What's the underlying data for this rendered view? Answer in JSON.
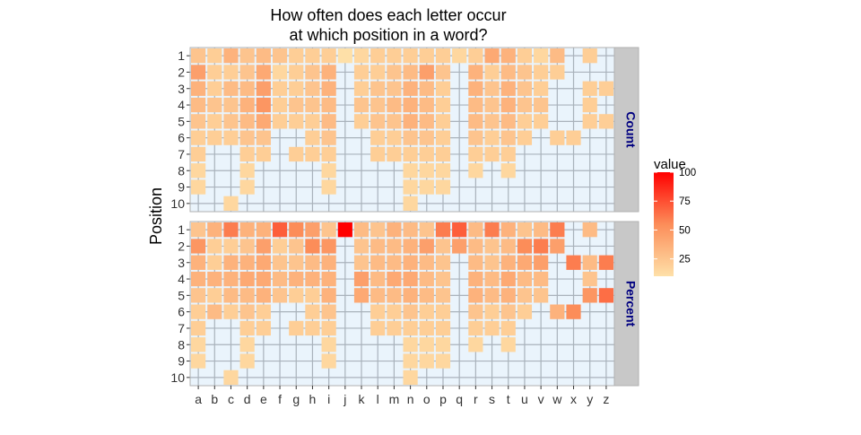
{
  "chart_data": {
    "type": "heatmap",
    "title_line1": "How often does each letter occur",
    "title_line2": "at which position in a word?",
    "ylabel": "Position",
    "xlabel": "",
    "x_categories": [
      "a",
      "b",
      "c",
      "d",
      "e",
      "f",
      "g",
      "h",
      "i",
      "j",
      "k",
      "l",
      "m",
      "n",
      "o",
      "p",
      "q",
      "r",
      "s",
      "t",
      "u",
      "v",
      "w",
      "x",
      "y",
      "z"
    ],
    "y_categories": [
      "1",
      "2",
      "3",
      "4",
      "5",
      "6",
      "7",
      "8",
      "9",
      "10"
    ],
    "panels": [
      {
        "name": "Count",
        "values": [
          [
            25,
            20,
            35,
            25,
            30,
            25,
            20,
            20,
            20,
            10,
            15,
            20,
            20,
            20,
            20,
            20,
            15,
            20,
            40,
            35,
            20,
            15,
            30,
            null,
            20,
            null
          ],
          [
            45,
            20,
            20,
            25,
            40,
            15,
            20,
            25,
            35,
            null,
            20,
            20,
            25,
            30,
            45,
            25,
            null,
            35,
            20,
            30,
            25,
            20,
            20,
            null,
            null,
            null
          ],
          [
            35,
            20,
            30,
            30,
            45,
            20,
            20,
            25,
            35,
            null,
            20,
            25,
            25,
            35,
            30,
            20,
            null,
            35,
            25,
            35,
            25,
            20,
            null,
            null,
            20,
            20
          ],
          [
            30,
            25,
            25,
            35,
            50,
            20,
            25,
            25,
            30,
            null,
            25,
            25,
            30,
            35,
            30,
            20,
            null,
            30,
            25,
            35,
            25,
            25,
            null,
            null,
            20,
            null
          ],
          [
            25,
            20,
            25,
            30,
            40,
            20,
            20,
            20,
            30,
            null,
            20,
            25,
            25,
            35,
            30,
            20,
            null,
            30,
            25,
            30,
            20,
            20,
            null,
            null,
            20,
            20
          ],
          [
            20,
            20,
            20,
            25,
            25,
            null,
            null,
            20,
            25,
            null,
            null,
            20,
            20,
            25,
            25,
            20,
            null,
            25,
            20,
            25,
            20,
            null,
            20,
            20,
            null,
            null
          ],
          [
            20,
            null,
            null,
            20,
            20,
            null,
            20,
            20,
            20,
            null,
            null,
            20,
            20,
            20,
            20,
            20,
            null,
            20,
            20,
            20,
            null,
            null,
            null,
            null,
            null,
            null
          ],
          [
            15,
            null,
            null,
            15,
            null,
            null,
            null,
            null,
            15,
            null,
            null,
            null,
            null,
            15,
            15,
            15,
            null,
            15,
            null,
            15,
            null,
            null,
            null,
            null,
            null,
            null
          ],
          [
            15,
            null,
            null,
            15,
            null,
            null,
            null,
            null,
            15,
            null,
            null,
            null,
            null,
            15,
            15,
            15,
            null,
            null,
            null,
            null,
            null,
            null,
            null,
            null,
            null,
            null
          ],
          [
            null,
            null,
            15,
            null,
            null,
            null,
            null,
            null,
            null,
            null,
            null,
            null,
            null,
            15,
            null,
            null,
            null,
            null,
            null,
            null,
            null,
            null,
            null,
            null,
            null,
            null
          ]
        ]
      },
      {
        "name": "Percent",
        "values": [
          [
            25,
            35,
            60,
            35,
            35,
            70,
            55,
            45,
            25,
            100,
            30,
            25,
            35,
            30,
            25,
            60,
            70,
            30,
            60,
            35,
            25,
            30,
            60,
            null,
            30,
            null
          ],
          [
            50,
            20,
            20,
            25,
            45,
            20,
            25,
            55,
            50,
            null,
            25,
            30,
            30,
            35,
            45,
            25,
            45,
            30,
            25,
            30,
            55,
            60,
            45,
            null,
            null,
            null
          ],
          [
            35,
            20,
            35,
            35,
            40,
            25,
            25,
            30,
            35,
            null,
            25,
            30,
            30,
            35,
            30,
            25,
            null,
            30,
            25,
            35,
            40,
            45,
            null,
            60,
            30,
            60
          ],
          [
            35,
            35,
            35,
            40,
            40,
            30,
            35,
            35,
            35,
            null,
            45,
            30,
            40,
            40,
            30,
            25,
            null,
            35,
            30,
            40,
            30,
            30,
            null,
            null,
            25,
            null
          ],
          [
            25,
            20,
            30,
            30,
            35,
            25,
            20,
            20,
            35,
            null,
            40,
            30,
            30,
            35,
            30,
            25,
            null,
            35,
            30,
            35,
            25,
            25,
            null,
            null,
            50,
            65
          ],
          [
            20,
            30,
            20,
            25,
            20,
            null,
            null,
            20,
            25,
            null,
            null,
            20,
            20,
            25,
            20,
            20,
            null,
            25,
            20,
            25,
            20,
            null,
            35,
            55,
            null,
            null
          ],
          [
            20,
            null,
            null,
            20,
            20,
            null,
            20,
            20,
            20,
            null,
            null,
            20,
            20,
            20,
            20,
            20,
            null,
            20,
            20,
            20,
            null,
            null,
            null,
            null,
            null,
            null
          ],
          [
            15,
            null,
            null,
            15,
            null,
            null,
            null,
            null,
            15,
            null,
            null,
            null,
            null,
            15,
            15,
            15,
            null,
            15,
            null,
            15,
            null,
            null,
            null,
            null,
            null,
            null
          ],
          [
            15,
            null,
            null,
            15,
            null,
            null,
            null,
            null,
            15,
            null,
            null,
            null,
            null,
            15,
            15,
            15,
            null,
            null,
            null,
            null,
            null,
            null,
            null,
            null,
            null,
            null
          ],
          [
            null,
            null,
            15,
            null,
            null,
            null,
            null,
            null,
            null,
            null,
            null,
            null,
            null,
            15,
            null,
            null,
            null,
            null,
            null,
            null,
            null,
            null,
            null,
            null,
            null,
            null
          ]
        ]
      }
    ],
    "legend": {
      "title": "value",
      "ticks": [
        100,
        75,
        50,
        25
      ],
      "range": [
        10,
        100
      ],
      "color_low": "#fee0a8",
      "color_mid": "#fc8d59",
      "color_high": "#ff0000",
      "placement": "right"
    },
    "colors": {
      "panel_background": "#eaf4fc",
      "grid": "#a9b2bb",
      "strip_background": "#c8c8c8",
      "strip_text": "#000080"
    },
    "grid": true
  }
}
